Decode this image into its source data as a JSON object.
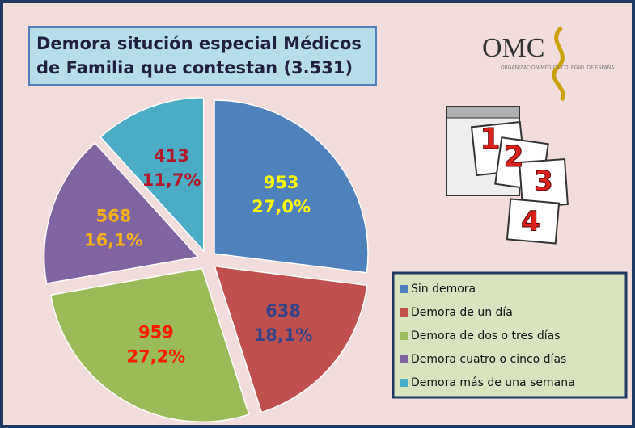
{
  "chart_data": {
    "type": "pie",
    "title": "Demora situción especial Médicos de Familia que contestan (3.531)",
    "categories": [
      "Sin demora",
      "Demora de un día",
      "Demora de dos o tres días",
      "Demora cuatro o cinco días",
      "Demora más de una semana"
    ],
    "values": [
      953,
      638,
      959,
      568,
      413
    ],
    "percentages": [
      27.0,
      18.1,
      27.2,
      16.1,
      11.7
    ],
    "percentage_labels": [
      "27,0%",
      "18,1%",
      "27,2%",
      "16,1%",
      "11,7%"
    ],
    "colors": [
      "#4f81bd",
      "#c0504d",
      "#9bbb59",
      "#8064a2",
      "#4bacc6"
    ],
    "label_colors": [
      "#ffff00",
      "#34448a",
      "#ff1a00",
      "#f5b11a",
      "#b0182a"
    ],
    "legend": "bottom-right"
  },
  "logo": {
    "text": "OMC",
    "subtitle": "ORGANIZACIÓN MÉDICA COLEGIAL DE ESPAÑA"
  },
  "calendar": {
    "pages": [
      "1",
      "2",
      "3",
      "4"
    ]
  }
}
